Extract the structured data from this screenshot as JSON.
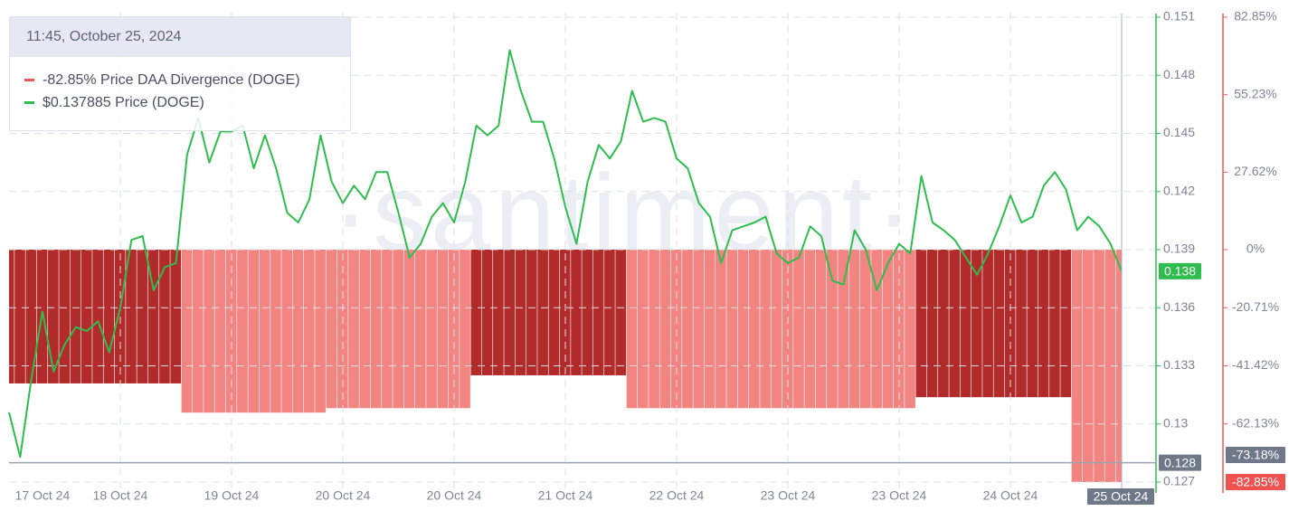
{
  "chart_data": {
    "type": "combo",
    "header": "11:45, October 25, 2024",
    "watermark": "·santiment·",
    "categories": [
      null,
      null,
      null,
      "17 Oct 24",
      null,
      null,
      null,
      null,
      null,
      null,
      "18 Oct 24",
      null,
      null,
      null,
      null,
      null,
      null,
      null,
      null,
      null,
      "19 Oct 24",
      null,
      null,
      null,
      null,
      null,
      null,
      null,
      null,
      null,
      "20 Oct 24",
      null,
      null,
      null,
      null,
      null,
      null,
      null,
      null,
      null,
      "20 Oct 24",
      null,
      null,
      null,
      null,
      null,
      null,
      null,
      null,
      null,
      "21 Oct 24",
      null,
      null,
      null,
      null,
      null,
      null,
      null,
      null,
      null,
      "22 Oct 24",
      null,
      null,
      null,
      null,
      null,
      null,
      null,
      null,
      null,
      "23 Oct 24",
      null,
      null,
      null,
      null,
      null,
      null,
      null,
      null,
      null,
      "23 Oct 24",
      null,
      null,
      null,
      null,
      null,
      null,
      null,
      null,
      null,
      "24 Oct 24",
      null,
      null,
      null,
      null,
      null,
      null,
      null,
      null,
      null,
      "25 Oct 24"
    ],
    "ylim": [
      0.127,
      0.151
    ],
    "yticks": [
      0.127,
      0.13,
      0.133,
      0.136,
      0.139,
      0.142,
      0.145,
      0.148,
      0.151
    ],
    "y2lim": [
      -82.85,
      82.85
    ],
    "y2ticks": [
      {
        "value": 82.85,
        "label": "82.85%"
      },
      {
        "value": 55.23,
        "label": "55.23%"
      },
      {
        "value": 27.62,
        "label": "27.62%"
      },
      {
        "value": 0,
        "label": "0%"
      },
      {
        "value": -20.71,
        "label": "-20.71%"
      },
      {
        "value": -41.42,
        "label": "-41.42%"
      },
      {
        "value": -62.13,
        "label": "-62.13%"
      }
    ],
    "grid": true,
    "crosshair_y": 0.128,
    "crosshair_y2": {
      "value": -73.18,
      "label": "-73.18%"
    },
    "series": [
      {
        "name": "Price DAA Divergence (DOGE)",
        "type": "bar",
        "axis": "y2",
        "color": "#e85a5a",
        "value_label": "-82.85%",
        "colors": [
          "#b22b2b",
          "#b22b2b",
          "#b22b2b",
          "#b22b2b",
          "#b22b2b",
          "#b22b2b",
          "#b22b2b",
          "#b22b2b",
          "#b22b2b",
          "#b22b2b",
          "#b22b2b",
          "#b22b2b",
          "#b22b2b",
          "#b22b2b",
          "#b22b2b",
          "#b22b2b",
          "#f28482",
          "#f28482",
          "#f28482",
          "#f28482",
          "#f28482",
          "#f28482",
          "#f28482",
          "#f28482",
          "#f28482",
          "#f28482",
          "#f28482",
          "#f28482",
          "#f28482",
          "#f28482",
          "#f28482",
          "#f28482",
          "#f28482",
          "#f28482",
          "#f28482",
          "#f28482",
          "#f28482",
          "#f28482",
          "#f28482",
          "#f28482",
          "#f28482",
          "#f28482",
          "#b22b2b",
          "#b22b2b",
          "#b22b2b",
          "#b22b2b",
          "#b22b2b",
          "#b22b2b",
          "#b22b2b",
          "#b22b2b",
          "#b22b2b",
          "#b22b2b",
          "#b22b2b",
          "#b22b2b",
          "#b22b2b",
          "#b22b2b",
          "#f28482",
          "#f28482",
          "#f28482",
          "#f28482",
          "#f28482",
          "#f28482",
          "#f28482",
          "#f28482",
          "#f28482",
          "#f28482",
          "#f28482",
          "#f28482",
          "#f28482",
          "#f28482",
          "#f28482",
          "#f28482",
          "#f28482",
          "#f28482",
          "#f28482",
          "#f28482",
          "#f28482",
          "#f28482",
          "#f28482",
          "#f28482",
          "#f28482",
          "#f28482",
          "#b22b2b",
          "#b22b2b",
          "#b22b2b",
          "#b22b2b",
          "#b22b2b",
          "#b22b2b",
          "#b22b2b",
          "#b22b2b",
          "#b22b2b",
          "#b22b2b",
          "#b22b2b",
          "#b22b2b",
          "#b22b2b",
          "#b22b2b",
          "#f28482",
          "#f28482",
          "#f28482",
          "#f28482",
          "#f28482"
        ],
        "values": [
          -47.7,
          -47.7,
          -47.7,
          -47.7,
          -47.7,
          -47.7,
          -47.7,
          -47.7,
          -47.7,
          -47.7,
          -47.7,
          -47.7,
          -47.7,
          -47.7,
          -47.7,
          -47.7,
          -58.1,
          -58.1,
          -58.1,
          -58.1,
          -58.1,
          -58.1,
          -58.1,
          -58.1,
          -58.1,
          -58.1,
          -58.1,
          -58.1,
          -58.1,
          -56.5,
          -56.5,
          -56.5,
          -56.5,
          -56.5,
          -56.5,
          -56.5,
          -56.5,
          -56.5,
          -56.5,
          -56.5,
          -56.5,
          -56.5,
          -44.8,
          -44.8,
          -44.8,
          -44.8,
          -44.8,
          -44.8,
          -44.8,
          -44.8,
          -44.8,
          -44.8,
          -44.8,
          -44.8,
          -44.8,
          -44.8,
          -56.5,
          -56.5,
          -56.5,
          -56.5,
          -56.5,
          -56.5,
          -56.5,
          -56.5,
          -56.5,
          -56.5,
          -56.5,
          -56.5,
          -56.5,
          -56.5,
          -56.5,
          -56.5,
          -56.5,
          -56.5,
          -56.5,
          -56.5,
          -56.5,
          -56.5,
          -56.5,
          -56.5,
          -56.5,
          -56.5,
          -52.6,
          -52.6,
          -52.6,
          -52.6,
          -52.6,
          -52.6,
          -52.6,
          -52.6,
          -52.6,
          -52.6,
          -52.6,
          -52.6,
          -52.6,
          -52.6,
          -82.85,
          -82.85,
          -82.85,
          -82.85,
          -82.85
        ]
      },
      {
        "name": "Price (DOGE)",
        "type": "line",
        "color": "#2ebd4e",
        "value_label": "$0.137885",
        "badge_label": "0.138",
        "values": [
          0.1306,
          0.1283,
          0.1323,
          0.1358,
          0.1327,
          0.1341,
          0.135,
          0.1348,
          0.1353,
          0.1337,
          0.136,
          0.1395,
          0.1397,
          0.1369,
          0.1381,
          0.1383,
          0.1439,
          0.1458,
          0.1435,
          0.1451,
          0.1451,
          0.1454,
          0.1432,
          0.1449,
          0.1432,
          0.1409,
          0.1404,
          0.1416,
          0.1449,
          0.1425,
          0.1414,
          0.1423,
          0.1416,
          0.143,
          0.143,
          0.1409,
          0.1386,
          0.1393,
          0.1407,
          0.1414,
          0.1404,
          0.1425,
          0.1454,
          0.1449,
          0.1454,
          0.1493,
          0.1472,
          0.1456,
          0.1456,
          0.1437,
          0.1412,
          0.1393,
          0.1425,
          0.1444,
          0.1437,
          0.1446,
          0.1472,
          0.1456,
          0.1458,
          0.1456,
          0.1437,
          0.1432,
          0.1414,
          0.1407,
          0.1383,
          0.14,
          0.1402,
          0.1404,
          0.1407,
          0.1388,
          0.1383,
          0.1386,
          0.1402,
          0.1397,
          0.1374,
          0.1372,
          0.14,
          0.139,
          0.1369,
          0.1383,
          0.1393,
          0.1388,
          0.1428,
          0.1404,
          0.14,
          0.1395,
          0.1386,
          0.1377,
          0.1388,
          0.1402,
          0.1418,
          0.1404,
          0.1407,
          0.1423,
          0.143,
          0.1421,
          0.14,
          0.1407,
          0.1402,
          0.1393,
          0.137885
        ]
      }
    ]
  }
}
